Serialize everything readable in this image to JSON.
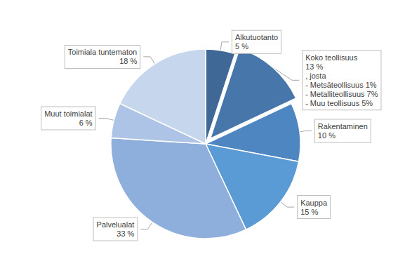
{
  "chart_data": {
    "type": "pie",
    "categories": [
      "Alkutuotanto",
      "Koko teollisuus",
      "Rakentaminen",
      "Kauppa",
      "Palvelualat",
      "Muut toimialat",
      "Toimiala tuntematon"
    ],
    "values": [
      5,
      13,
      10,
      15,
      33,
      6,
      18
    ],
    "value_labels": [
      "5 %",
      "13 %",
      "10 %",
      "15 %",
      "33 %",
      "6 %",
      "18 %"
    ],
    "colors": [
      "#3f6897",
      "#4676aa",
      "#4e86c2",
      "#5b9bd5",
      "#8eafdc",
      "#adc4e6",
      "#c6d6ec"
    ],
    "data_labels": true,
    "exploded": "Koko teollisuus",
    "annotations": [
      {
        "category": "Koko teollisuus",
        "text": ", josta",
        "items": [
          {
            "name": "- Metsäteollisuus",
            "value": 1,
            "value_label": "1%"
          },
          {
            "name": "- Metalliteollisuus",
            "value": 7,
            "value_label": "7%"
          },
          {
            "name": "- Muu teollisuus",
            "value": 5,
            "value_label": "5%"
          }
        ]
      }
    ]
  }
}
